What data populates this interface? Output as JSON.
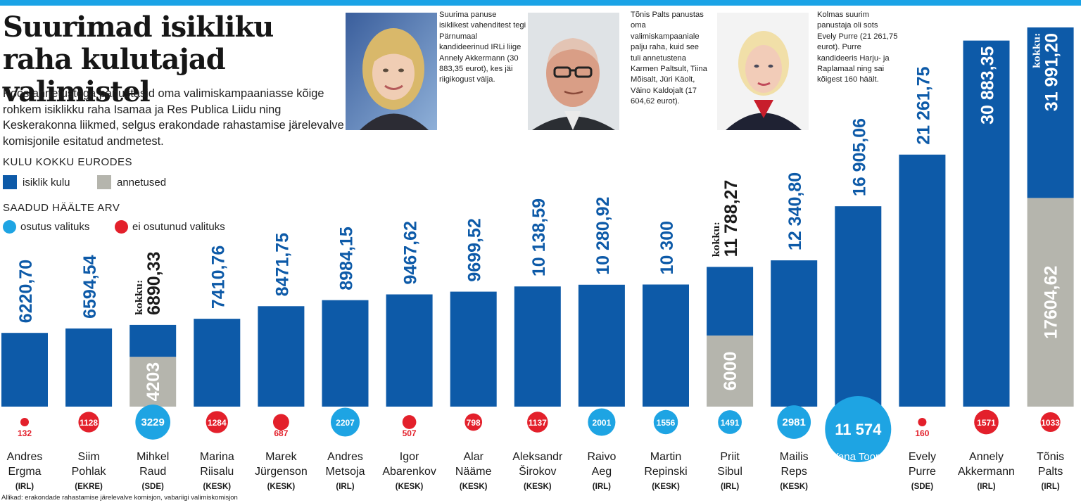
{
  "header": {
    "title": "Suurimad isikliku raha kulutajad valimistel",
    "intro": "Koos annetustega panustasid oma valimiskampaaniasse kõige rohkem isiklikku raha Isamaa ja Res Publica Liidu ning Keskerakonna liikmed, selgus erakondade rahastamise järelevalve komisjonile esitatud andmetest."
  },
  "legend": {
    "spend_heading": "KULU KOKKU EURODES",
    "personal_label": "isiklik kulu",
    "donations_label": "annetused",
    "votes_heading": "SAADUD HÄÄLTE ARV",
    "elected_label": "osutus valituks",
    "not_elected_label": "ei osutunud valituks"
  },
  "colors": {
    "accent": "#1aa3e6",
    "personal": "#0d5aa8",
    "donations": "#b5b5ad",
    "elected": "#1ea4e3",
    "not_elected": "#e3202b",
    "value_text": "#0d5aa8",
    "total_text": "#1a1a1a"
  },
  "captions": [
    {
      "text": "Suurima panuse isiklikest vahenditest tegi Pärnumaal kandideerinud IRLi liige Annely Akkermann (30 883,35 eurot), kes jäi riigikogust välja."
    },
    {
      "text": "Tõnis Palts panustas oma valimiskampaaniale palju raha, kuid see tuli annetustena Karmen Paltsult, Tiina Mõisalt, Jüri Käolt, Väino Kaldojalt (17 604,62 eurot)."
    },
    {
      "text": "Kolmas suurim panustaja oli sots Evely Purre (21 261,75 eurot). Purre kandideeris Harju- ja Raplamaal ning sai kõigest 160 häält."
    }
  ],
  "photos": [
    "photo-annely-akkermann",
    "photo-tonis-palts",
    "photo-evely-purre"
  ],
  "source": "Allikad: erakondade rahastamise järelevalve komisjon, vabariigi valimiskomisjon",
  "chart_data": {
    "type": "bar",
    "stacked": true,
    "title": "KULU KOKKU EURODES",
    "total_prefix": "kokku:",
    "categories": [
      {
        "first": "Andres",
        "last": "Ergma",
        "party": "(IRL)"
      },
      {
        "first": "Siim",
        "last": "Pohlak",
        "party": "(EKRE)"
      },
      {
        "first": "Mihkel",
        "last": "Raud",
        "party": "(SDE)"
      },
      {
        "first": "Marina",
        "last": "Riisalu",
        "party": "(KESK)"
      },
      {
        "first": "Marek",
        "last": "Jürgenson",
        "party": "(KESK)"
      },
      {
        "first": "Andres",
        "last": "Metsoja",
        "party": "(IRL)"
      },
      {
        "first": "Igor",
        "last": "Abarenkov",
        "party": "(KESK)"
      },
      {
        "first": "Alar",
        "last": "Nääme",
        "party": "(KESK)"
      },
      {
        "first": "Aleksandr",
        "last": "Širokov",
        "party": "(KESK)"
      },
      {
        "first": "Raivo",
        "last": "Aeg",
        "party": "(IRL)"
      },
      {
        "first": "Martin",
        "last": "Repinski",
        "party": "(KESK)"
      },
      {
        "first": "Priit",
        "last": "Sibul",
        "party": "(IRL)"
      },
      {
        "first": "Mailis",
        "last": "Reps",
        "party": "(KESK)"
      },
      {
        "first": "Yana Toom",
        "last": "",
        "party": "(KESK)"
      },
      {
        "first": "Evely",
        "last": "Purre",
        "party": "(SDE)"
      },
      {
        "first": "Annely",
        "last": "Akkermann",
        "party": "(IRL)"
      },
      {
        "first": "Tõnis",
        "last": "Palts",
        "party": "(IRL)"
      }
    ],
    "series": [
      {
        "name": "isiklik kulu",
        "values": [
          6220.7,
          6594.54,
          2687.33,
          7410.76,
          8471.75,
          8984.15,
          9467.62,
          9699.52,
          10138.59,
          10280.92,
          10300,
          5788.27,
          12340.8,
          16905.06,
          21261.75,
          30883.35,
          14386.58
        ]
      },
      {
        "name": "annetused",
        "values": [
          0,
          0,
          4203,
          0,
          0,
          0,
          0,
          0,
          0,
          0,
          0,
          6000,
          0,
          0,
          0,
          0,
          17604.62
        ]
      }
    ],
    "value_labels": [
      "6220,70",
      "6594,54",
      "6890,33",
      "7410,76",
      "8471,75",
      "8984,15",
      "9467,62",
      "9699,52",
      "10 138,59",
      "10 280,92",
      "10 300",
      "11 788,27",
      "12 340,80",
      "16 905,06",
      "21 261,75",
      "30 883,35",
      "31 991,20"
    ],
    "show_total_prefix": [
      false,
      false,
      true,
      false,
      false,
      false,
      false,
      false,
      false,
      false,
      false,
      true,
      false,
      false,
      false,
      false,
      true
    ],
    "donation_labels": [
      "",
      "",
      "4203",
      "",
      "",
      "",
      "",
      "",
      "",
      "",
      "",
      "6000",
      "",
      "",
      "",
      "",
      "17604,62"
    ],
    "votes": [
      132,
      1128,
      3229,
      1284,
      687,
      2207,
      507,
      798,
      1137,
      2001,
      1556,
      1491,
      2981,
      11574,
      160,
      1571,
      1033
    ],
    "vote_labels": [
      "132",
      "1128",
      "3229",
      "1284",
      "687",
      "2207",
      "507",
      "798",
      "1137",
      "2001",
      "1556",
      "1491",
      "2981",
      "11 574",
      "160",
      "1571",
      "1033"
    ],
    "elected": [
      false,
      false,
      true,
      false,
      false,
      true,
      false,
      false,
      false,
      true,
      true,
      true,
      true,
      true,
      false,
      false,
      false
    ],
    "ylim": [
      0,
      33000
    ]
  }
}
